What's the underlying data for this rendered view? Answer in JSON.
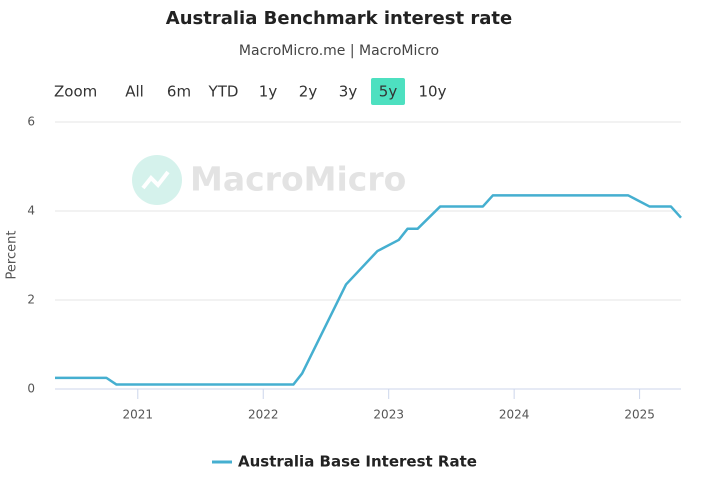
{
  "chart_data": {
    "type": "line",
    "title": "Australia Benchmark interest rate",
    "subtitle": "MacroMicro.me | MacroMicro",
    "watermark": "MacroMicro",
    "range_selector": {
      "label": "Zoom",
      "buttons": [
        "All",
        "6m",
        "YTD",
        "1y",
        "2y",
        "3y",
        "5y",
        "10y"
      ],
      "selected": 6
    },
    "y_label": "Percent",
    "x": [
      2020.34,
      2020.75,
      2020.83,
      2022.24,
      2022.31,
      2022.66,
      2022.91,
      2023.08,
      2023.15,
      2023.23,
      2023.41,
      2023.75,
      2023.83,
      2024.91,
      2025.08,
      2025.25,
      2025.33
    ],
    "series": [
      {
        "name": "Australia Base Interest Rate",
        "color": "#45afd0",
        "values": [
          0.25,
          0.25,
          0.1,
          0.1,
          0.35,
          2.35,
          3.1,
          3.35,
          3.6,
          3.6,
          4.1,
          4.1,
          4.35,
          4.35,
          4.1,
          4.1,
          3.85
        ]
      }
    ],
    "xlim": [
      2020.34,
      2025.33
    ],
    "xticks": [
      2021,
      2022,
      2023,
      2024,
      2025
    ],
    "ylim": [
      0,
      6
    ],
    "yticks": [
      0,
      2,
      4,
      6
    ],
    "grid": true
  }
}
